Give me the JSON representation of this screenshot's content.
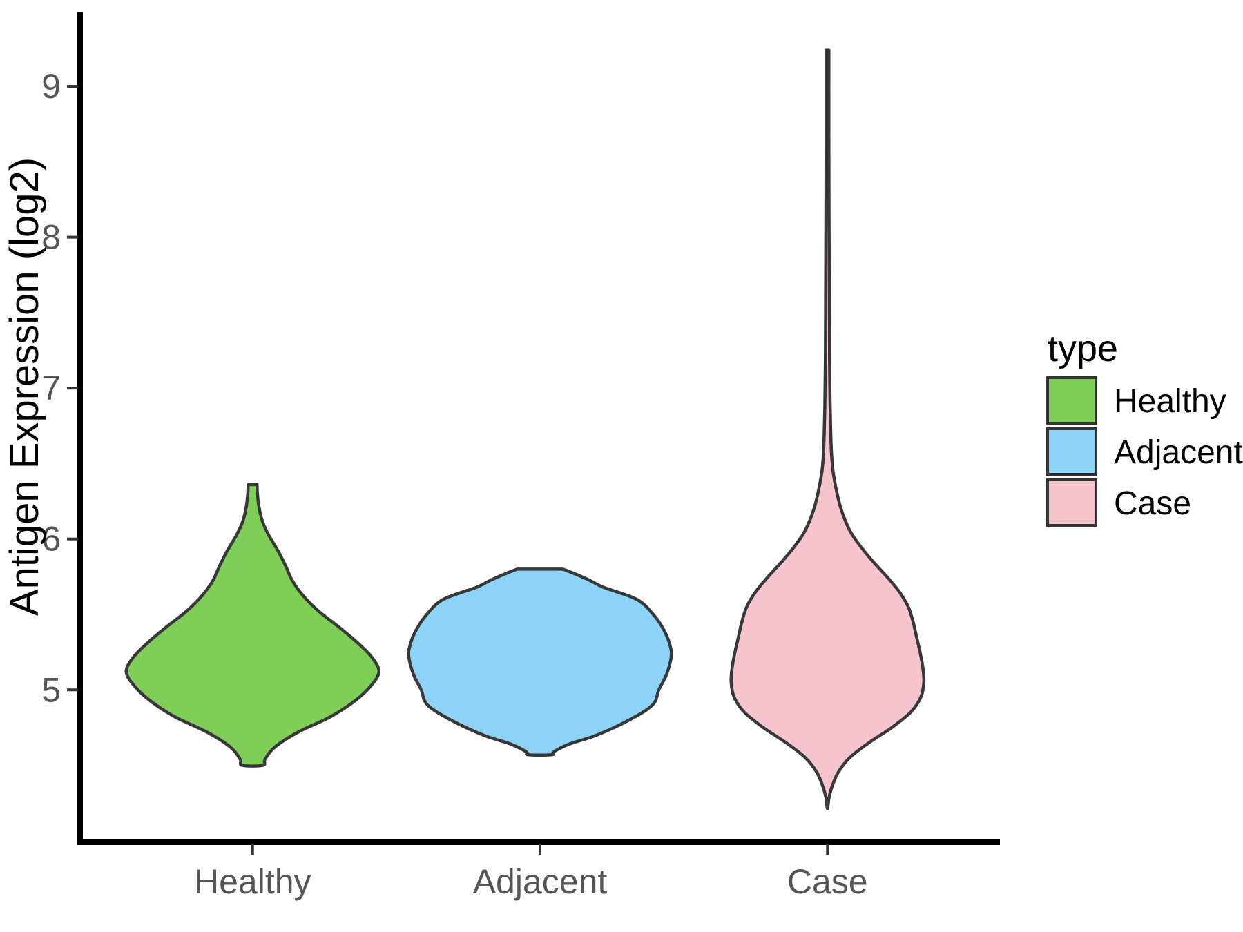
{
  "chart_data": {
    "type": "violin",
    "title": "",
    "xlabel": "",
    "ylabel": "Antigen Expression (log2)",
    "categories": [
      "Healthy",
      "Adjacent",
      "Case"
    ],
    "y_ticks": [
      5,
      6,
      7,
      8,
      9
    ],
    "y_domain": [
      3.99,
      9.49
    ],
    "x_domain": [
      0.4,
      3.6
    ],
    "grid": false,
    "colors": {
      "outline": "#383838",
      "axis_line": "#000000",
      "tick_mark": "#333333",
      "tick_label": "#555555",
      "background": "#ffffff"
    },
    "legend": {
      "title": "type",
      "position": "right",
      "entries": [
        {
          "label": "Healthy",
          "color": "#7ECE57"
        },
        {
          "label": "Adjacent",
          "color": "#8DD3F7"
        },
        {
          "label": "Case",
          "color": "#F6C4CF"
        }
      ]
    },
    "series": [
      {
        "name": "Healthy",
        "x": 1,
        "fill": "#7ECE57",
        "y_min": 4.5,
        "y_max": 6.36,
        "profile": [
          [
            6.36,
            6.5
          ],
          [
            6.3,
            7
          ],
          [
            6.22,
            9
          ],
          [
            6.12,
            14
          ],
          [
            6.02,
            24
          ],
          [
            5.92,
            37
          ],
          [
            5.82,
            48
          ],
          [
            5.72,
            58
          ],
          [
            5.62,
            74
          ],
          [
            5.52,
            96
          ],
          [
            5.42,
            124
          ],
          [
            5.32,
            150
          ],
          [
            5.22,
            172
          ],
          [
            5.12,
            183
          ],
          [
            5.02,
            170
          ],
          [
            4.92,
            146
          ],
          [
            4.82,
            112
          ],
          [
            4.72,
            66
          ],
          [
            4.62,
            32
          ],
          [
            4.54,
            18
          ],
          [
            4.5,
            15
          ]
        ]
      },
      {
        "name": "Adjacent",
        "x": 2,
        "fill": "#8DD3F7",
        "y_min": 4.57,
        "y_max": 5.8,
        "profile": [
          [
            5.8,
            33
          ],
          [
            5.77,
            50
          ],
          [
            5.73,
            70
          ],
          [
            5.68,
            92
          ],
          [
            5.6,
            140
          ],
          [
            5.5,
            164
          ],
          [
            5.4,
            179
          ],
          [
            5.3,
            188
          ],
          [
            5.22,
            190
          ],
          [
            5.1,
            183
          ],
          [
            5.0,
            172
          ],
          [
            4.9,
            163
          ],
          [
            4.8,
            129
          ],
          [
            4.7,
            82
          ],
          [
            4.64,
            42
          ],
          [
            4.59,
            20
          ],
          [
            4.57,
            17
          ]
        ]
      },
      {
        "name": "Case",
        "x": 3,
        "fill": "#F6C4CF",
        "y_min": 4.22,
        "y_max": 9.24,
        "profile": [
          [
            9.24,
            2
          ],
          [
            8.6,
            2
          ],
          [
            7.8,
            2.5
          ],
          [
            7.2,
            3
          ],
          [
            6.85,
            4
          ],
          [
            6.6,
            5.5
          ],
          [
            6.45,
            8
          ],
          [
            6.3,
            14
          ],
          [
            6.18,
            21
          ],
          [
            6.05,
            33
          ],
          [
            5.95,
            48
          ],
          [
            5.85,
            66
          ],
          [
            5.75,
            86
          ],
          [
            5.65,
            104
          ],
          [
            5.55,
            117
          ],
          [
            5.45,
            124
          ],
          [
            5.35,
            129
          ],
          [
            5.25,
            134
          ],
          [
            5.15,
            138
          ],
          [
            5.05,
            139.5
          ],
          [
            4.95,
            135
          ],
          [
            4.85,
            120
          ],
          [
            4.75,
            93
          ],
          [
            4.65,
            60
          ],
          [
            4.55,
            32
          ],
          [
            4.45,
            15
          ],
          [
            4.35,
            6
          ],
          [
            4.28,
            2
          ],
          [
            4.22,
            0.5
          ]
        ]
      }
    ]
  }
}
